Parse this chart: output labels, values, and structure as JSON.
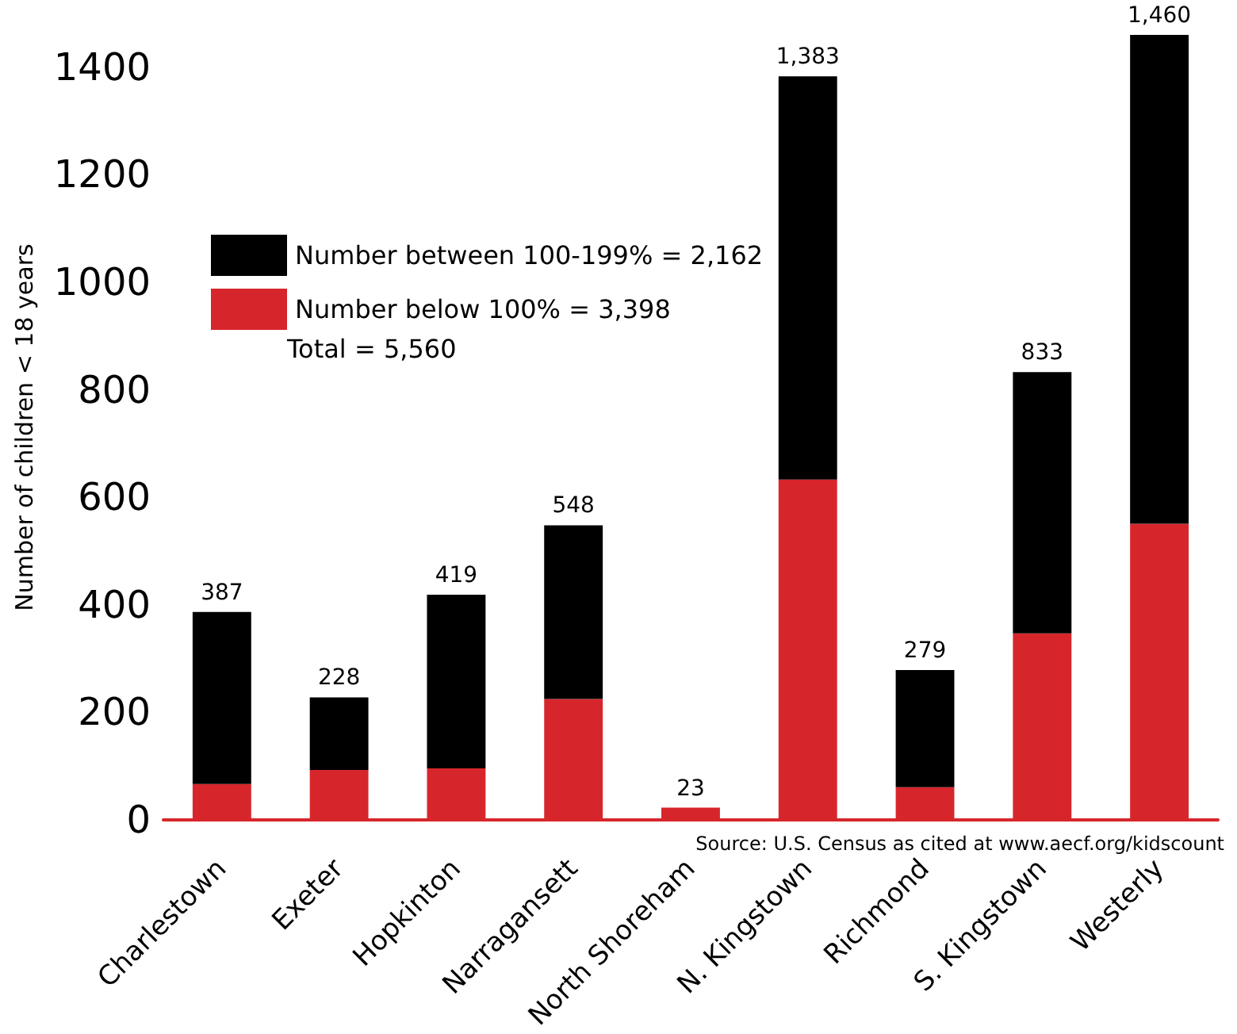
{
  "chart_data": {
    "type": "bar",
    "stacked": true,
    "ylabel": "Number of children < 18 years",
    "categories": [
      "Charlestown",
      "Exeter",
      "Hopkinton",
      "Narragansett",
      "North Shoreham",
      "N. Kingstown",
      "Richmond",
      "S. Kingstown",
      "Westerly"
    ],
    "series": [
      {
        "name": "Number below 100% = 3,398",
        "color": "#d7262b",
        "values": [
          67,
          93,
          96,
          225,
          23,
          633,
          61,
          347,
          551
        ]
      },
      {
        "name": "Number between 100-199% = 2,162",
        "color": "#000000",
        "values": [
          320,
          135,
          323,
          323,
          0,
          750,
          218,
          486,
          909
        ]
      }
    ],
    "totals": [
      "387",
      "228",
      "419",
      "548",
      "23",
      "1,383",
      "279",
      "833",
      "1,460"
    ],
    "ylim": [
      0,
      1460
    ],
    "yticks": [
      0,
      200,
      400,
      600,
      800,
      1000,
      1200,
      1400
    ],
    "grid": false,
    "legend": "top left",
    "annotations": [
      "Total = 5,560",
      "Source: U.S. Census as cited at www.aecf.org/kidscount"
    ]
  }
}
